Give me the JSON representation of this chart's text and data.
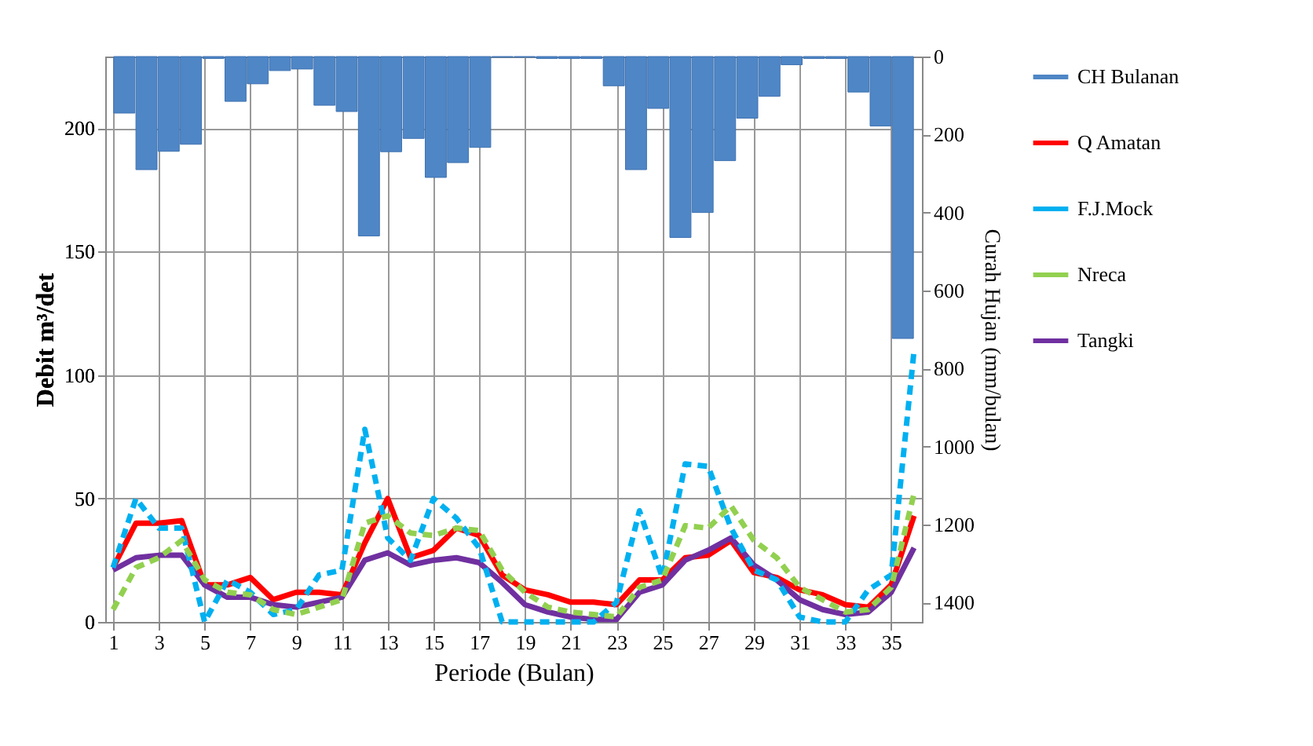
{
  "chart_data": {
    "type": "line",
    "xlabel": "Periode (Bulan)",
    "ylabel": "Debit m³/det",
    "y2label": "Curah Hujan (mm/bulan)",
    "x": [
      1,
      2,
      3,
      4,
      5,
      6,
      7,
      8,
      9,
      10,
      11,
      12,
      13,
      14,
      15,
      16,
      17,
      18,
      19,
      20,
      21,
      22,
      23,
      24,
      25,
      26,
      27,
      28,
      29,
      30,
      31,
      32,
      33,
      34,
      35,
      36
    ],
    "xlim": [
      1,
      36
    ],
    "xticks": [
      1,
      3,
      5,
      7,
      9,
      11,
      13,
      15,
      17,
      19,
      21,
      23,
      25,
      27,
      29,
      31,
      33,
      35
    ],
    "ylim": [
      0,
      229
    ],
    "yticks": [
      0,
      50,
      100,
      150,
      200
    ],
    "y2lim": [
      1450,
      0
    ],
    "y2ticks": [
      0,
      200,
      400,
      600,
      800,
      1000,
      1200,
      1400
    ],
    "grid": true,
    "legend": "right",
    "series": [
      {
        "name": "CH Bulanan",
        "type": "bar",
        "axis": "y2",
        "color": "#4f86c6",
        "x": [
          1.49,
          2.46,
          3.43,
          4.4,
          5.38,
          6.35,
          7.32,
          8.29,
          9.26,
          10.24,
          11.21,
          12.18,
          13.15,
          14.13,
          15.1,
          16.07,
          17.04,
          18.01,
          18.99,
          19.96,
          20.93,
          21.9,
          22.88,
          23.85,
          24.82,
          25.79,
          26.76,
          27.74,
          28.71,
          29.68,
          30.65,
          31.63,
          32.6,
          33.57,
          34.54,
          35.51
        ],
        "values": [
          145,
          290,
          243,
          225,
          5,
          115,
          70,
          36,
          32,
          125,
          141,
          460,
          244,
          210,
          310,
          272,
          233,
          2,
          2,
          5,
          5,
          5,
          75,
          290,
          133,
          464,
          400,
          267,
          158,
          102,
          21,
          5,
          5,
          91,
          178,
          723
        ]
      },
      {
        "name": "Q Amatan",
        "color": "#ff0000",
        "line_style": "solid",
        "values": [
          22,
          40,
          40,
          41,
          15,
          15,
          18,
          9,
          12,
          12,
          11,
          32,
          50,
          26,
          29,
          38,
          35,
          19,
          13,
          11,
          8,
          8,
          7,
          17,
          17,
          26,
          27,
          33,
          20,
          18,
          13,
          11,
          7,
          6,
          15,
          43
        ]
      },
      {
        "name": "F.J.Mock",
        "color": "#00b0f0",
        "line_style": "dashed",
        "values": [
          22,
          50,
          38,
          38,
          0,
          17,
          12,
          3,
          5,
          19,
          21,
          78,
          34,
          25,
          50,
          42,
          30,
          0,
          0,
          0,
          0,
          0,
          8,
          45,
          18,
          64,
          63,
          38,
          21,
          17,
          2,
          0,
          0,
          13,
          19,
          110
        ]
      },
      {
        "name": "Nreca",
        "color": "#92d050",
        "line_style": "dashed",
        "values": [
          5,
          22,
          26,
          33,
          17,
          12,
          11,
          5,
          3,
          6,
          9,
          40,
          43,
          36,
          35,
          38,
          37,
          21,
          12,
          6,
          4,
          3,
          2,
          14,
          17,
          39,
          38,
          47,
          33,
          26,
          14,
          9,
          4,
          5,
          14,
          52
        ]
      },
      {
        "name": "Tangki",
        "color": "#7030a0",
        "line_style": "solid",
        "values": [
          21,
          26,
          27,
          27,
          15,
          10,
          10,
          7,
          6,
          8,
          10,
          25,
          28,
          23,
          25,
          26,
          24,
          16,
          7,
          4,
          2,
          1,
          1,
          12,
          15,
          25,
          29,
          34,
          23,
          17,
          9,
          5,
          3,
          4,
          12,
          30
        ]
      }
    ]
  }
}
